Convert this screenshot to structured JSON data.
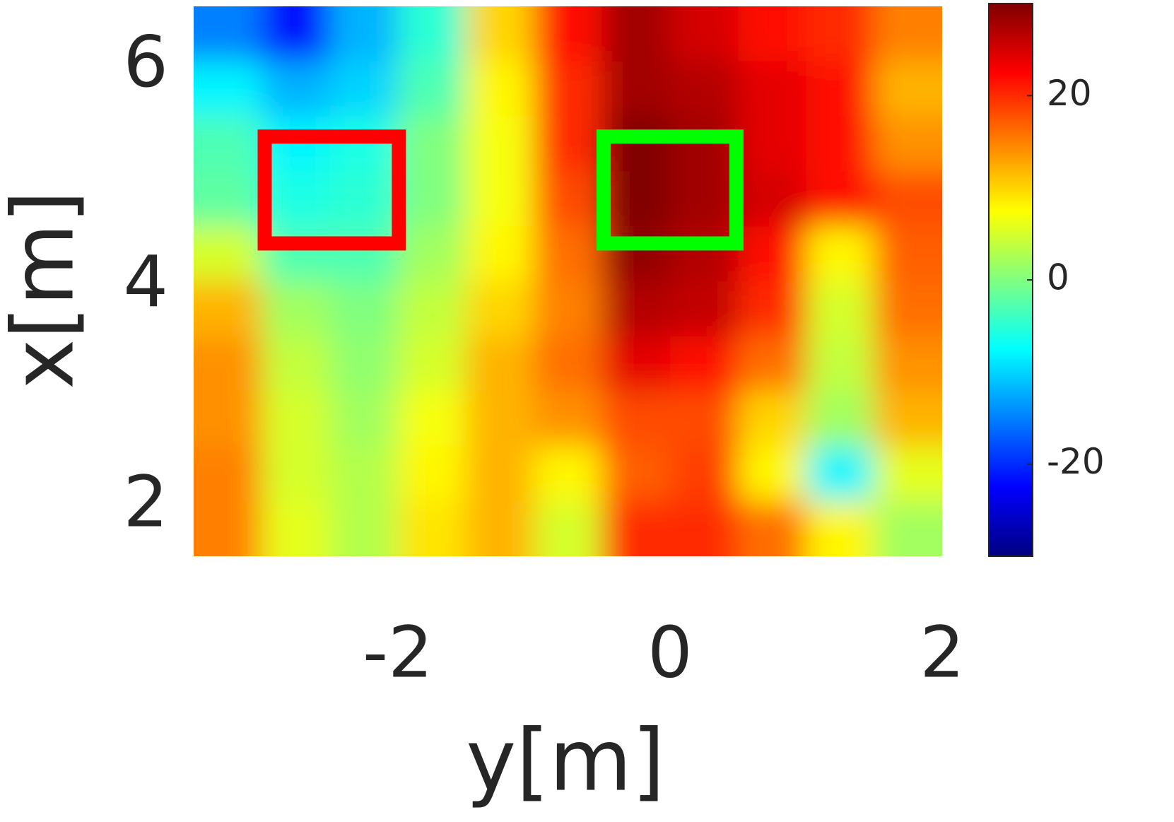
{
  "chart_data": {
    "type": "heatmap",
    "colormap": "jet",
    "xlabel": "y[m]",
    "ylabel": "x[m]",
    "x": [
      -3.25,
      -2.75,
      -2.25,
      -1.75,
      -1.25,
      -0.75,
      -0.25,
      0.25,
      0.75,
      1.25,
      1.75
    ],
    "y": [
      6.3,
      5.8,
      5.3,
      4.8,
      4.3,
      3.8,
      3.3,
      2.8,
      2.3,
      1.8
    ],
    "z": [
      [
        -15,
        -22,
        -12,
        -5,
        10,
        22,
        28,
        25,
        22,
        20,
        15
      ],
      [
        -8,
        -12,
        -10,
        -3,
        8,
        20,
        28,
        27,
        24,
        22,
        12
      ],
      [
        -3,
        -8,
        -6,
        0,
        7,
        20,
        30,
        28,
        24,
        22,
        14
      ],
      [
        -2,
        -6,
        -5,
        0,
        7,
        18,
        30,
        28,
        25,
        22,
        18
      ],
      [
        5,
        -3,
        -3,
        2,
        8,
        16,
        29,
        27,
        22,
        8,
        17
      ],
      [
        12,
        2,
        0,
        4,
        10,
        15,
        27,
        26,
        20,
        5,
        16
      ],
      [
        14,
        4,
        1,
        5,
        12,
        16,
        24,
        22,
        16,
        4,
        14
      ],
      [
        14,
        5,
        2,
        7,
        12,
        14,
        18,
        18,
        10,
        2,
        12
      ],
      [
        15,
        5,
        3,
        8,
        12,
        8,
        17,
        19,
        8,
        -8,
        6
      ],
      [
        15,
        6,
        3,
        9,
        12,
        5,
        20,
        20,
        16,
        8,
        2
      ]
    ],
    "xlim": [
      -3.5,
      2
    ],
    "ylim": [
      1.55,
      6.55
    ],
    "xticks": [
      -2,
      0,
      2
    ],
    "yticks": [
      2,
      4,
      6
    ],
    "clim": [
      -30,
      30
    ],
    "cticks": [
      -20,
      0,
      20
    ],
    "regions": [
      {
        "color": "#ff0000",
        "x": [
          -3.03,
          -1.94
        ],
        "y": [
          4.33,
          5.43
        ]
      },
      {
        "color": "#00ff00",
        "x": [
          -0.54,
          0.54
        ],
        "y": [
          4.33,
          5.43
        ]
      }
    ]
  }
}
